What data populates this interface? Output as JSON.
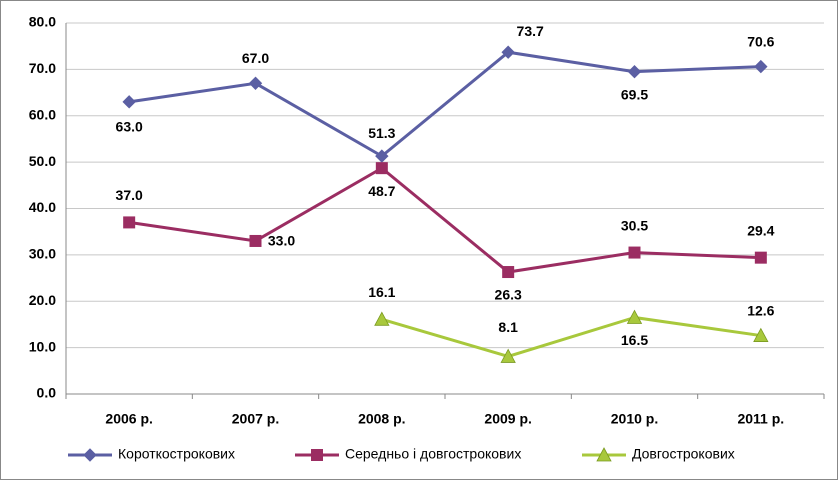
{
  "chart_data": {
    "type": "line",
    "categories": [
      "2006 р.",
      "2007 р.",
      "2008 р.",
      "2009 р.",
      "2010 р.",
      "2011 р."
    ],
    "series": [
      {
        "name": "Короткострокових",
        "color": "#5b5fa3",
        "marker": "diamond",
        "values": [
          63.0,
          67.0,
          51.3,
          73.7,
          69.5,
          70.6
        ],
        "value_labels": [
          "63.0",
          "67.0",
          "51.3",
          "73.7",
          "69.5",
          "70.6"
        ]
      },
      {
        "name": "Середньо і довгострокових",
        "color": "#9b2d62",
        "marker": "square",
        "values": [
          37.0,
          33.0,
          48.7,
          26.3,
          30.5,
          29.4
        ],
        "value_labels": [
          "37.0",
          "33.0",
          "48.7",
          "26.3",
          "30.5",
          "29.4"
        ]
      },
      {
        "name": "Довгострокових",
        "color": "#a8c83c",
        "marker": "triangle",
        "values": [
          null,
          null,
          16.1,
          8.1,
          16.5,
          12.6
        ],
        "value_labels": [
          null,
          null,
          "16.1",
          "8.1",
          "16.5",
          "12.6"
        ]
      }
    ],
    "ylim": [
      0,
      80
    ],
    "yticks": [
      {
        "value": 0,
        "label": "0.0"
      },
      {
        "value": 10,
        "label": "10.0"
      },
      {
        "value": 20,
        "label": "20.0"
      },
      {
        "value": 30,
        "label": "30.0"
      },
      {
        "value": 40,
        "label": "40.0"
      },
      {
        "value": 50,
        "label": "50.0"
      },
      {
        "value": 60,
        "label": "60.0"
      },
      {
        "value": 70,
        "label": "70.0"
      },
      {
        "value": 80,
        "label": "80.0"
      }
    ],
    "grid": true,
    "legend": "bottom"
  }
}
